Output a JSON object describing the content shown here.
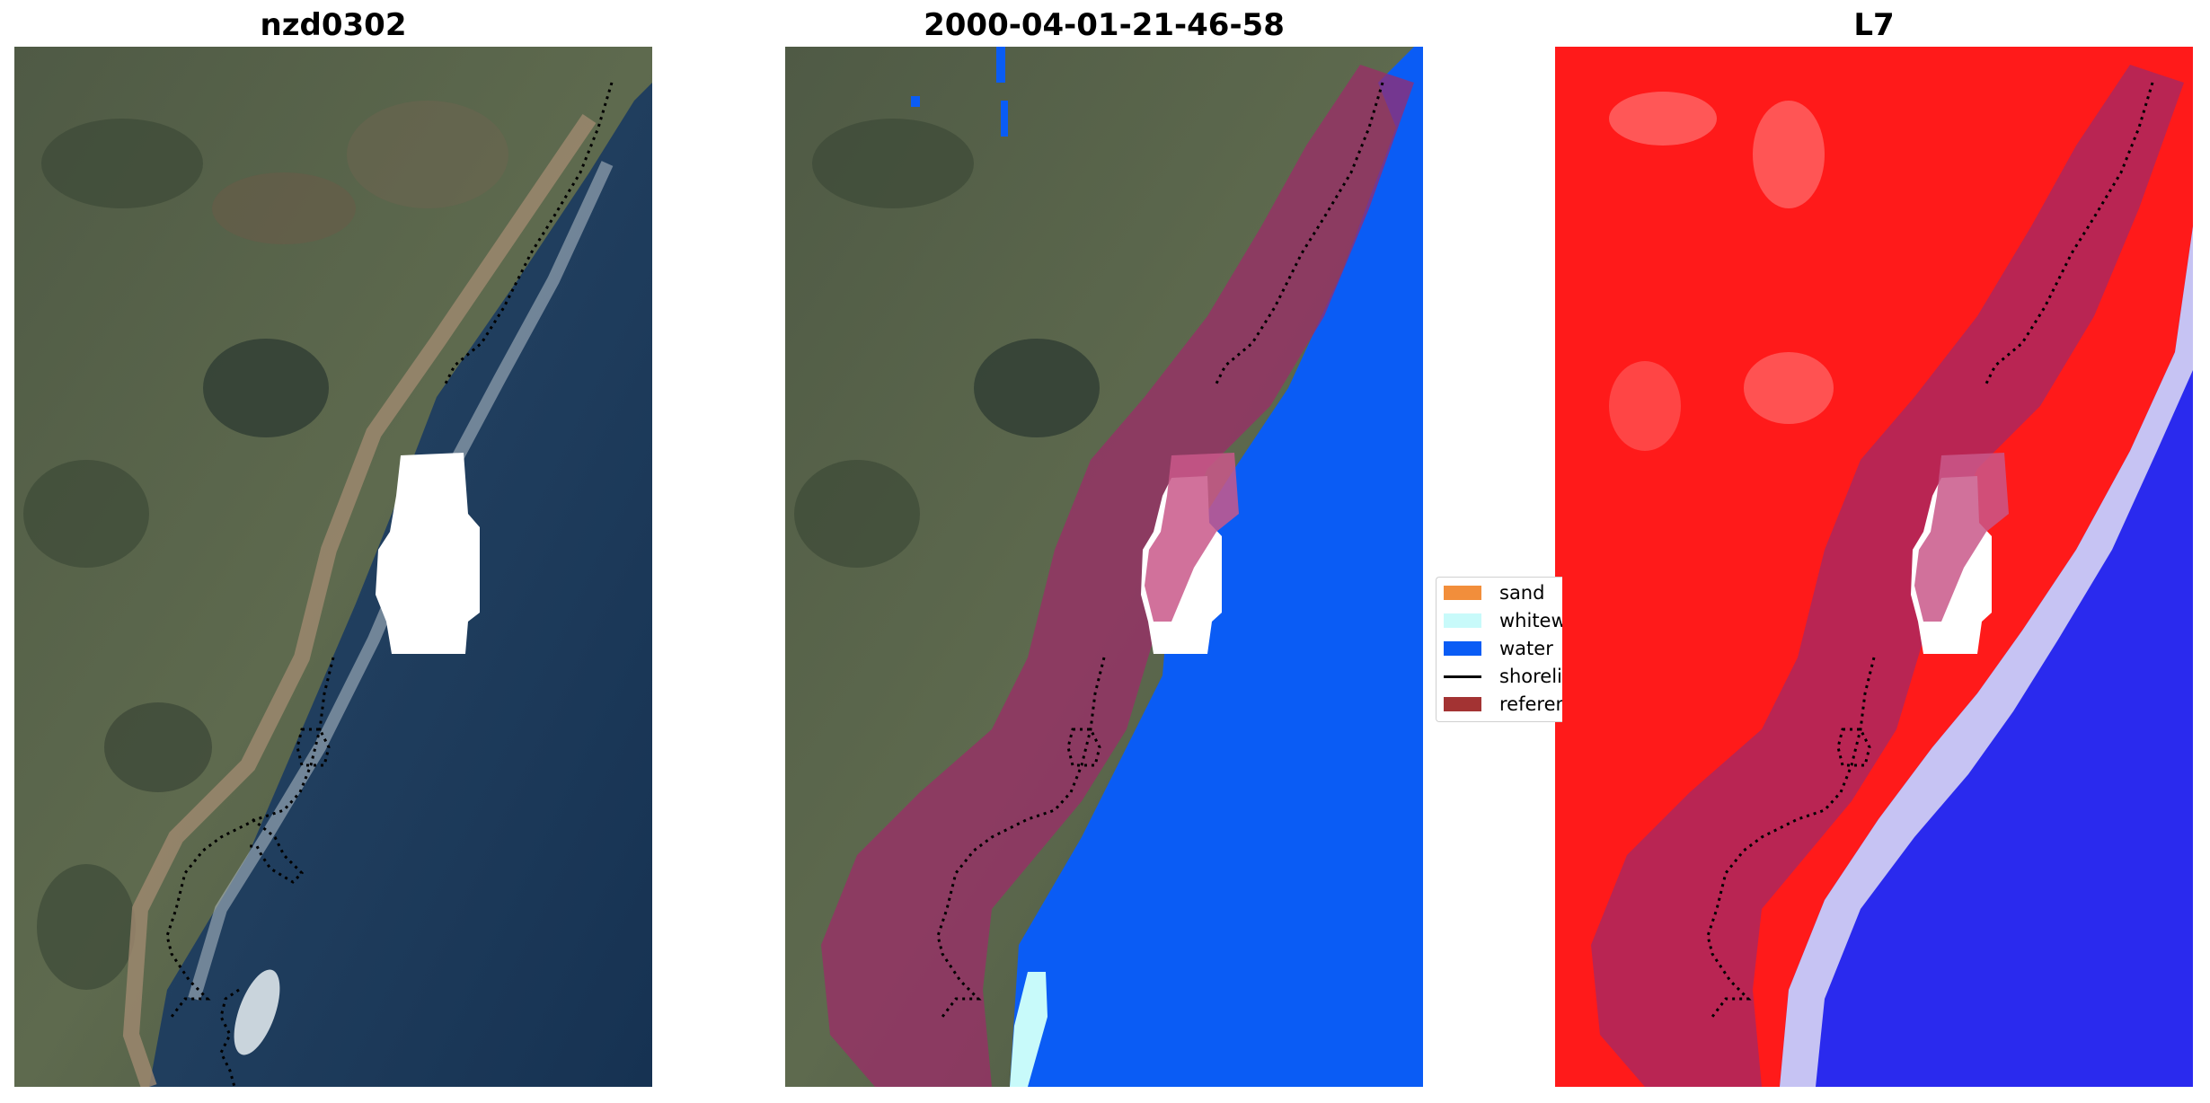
{
  "panels": [
    {
      "title": "nzd0302"
    },
    {
      "title": "2000-04-01-21-46-58"
    },
    {
      "title": "L7"
    }
  ],
  "legend": {
    "items": [
      {
        "label": "sand",
        "color": "#f28e3b"
      },
      {
        "label": "whitewater",
        "color": "#c8fafa"
      },
      {
        "label": "water",
        "color": "#0a5cf5"
      },
      {
        "label": "shoreline",
        "color": "#000000"
      },
      {
        "label": "reference",
        "color": "#a33333"
      }
    ]
  },
  "colors": {
    "land": "#5e6a4e",
    "ocean": "#1d3a5e",
    "cloud_mask": "#ffffff",
    "reference_buffer": "#9e2a4a",
    "classified_water": "#0a5cf5",
    "index_positive": "#ff1a1a",
    "index_negative": "#2a2aee"
  }
}
